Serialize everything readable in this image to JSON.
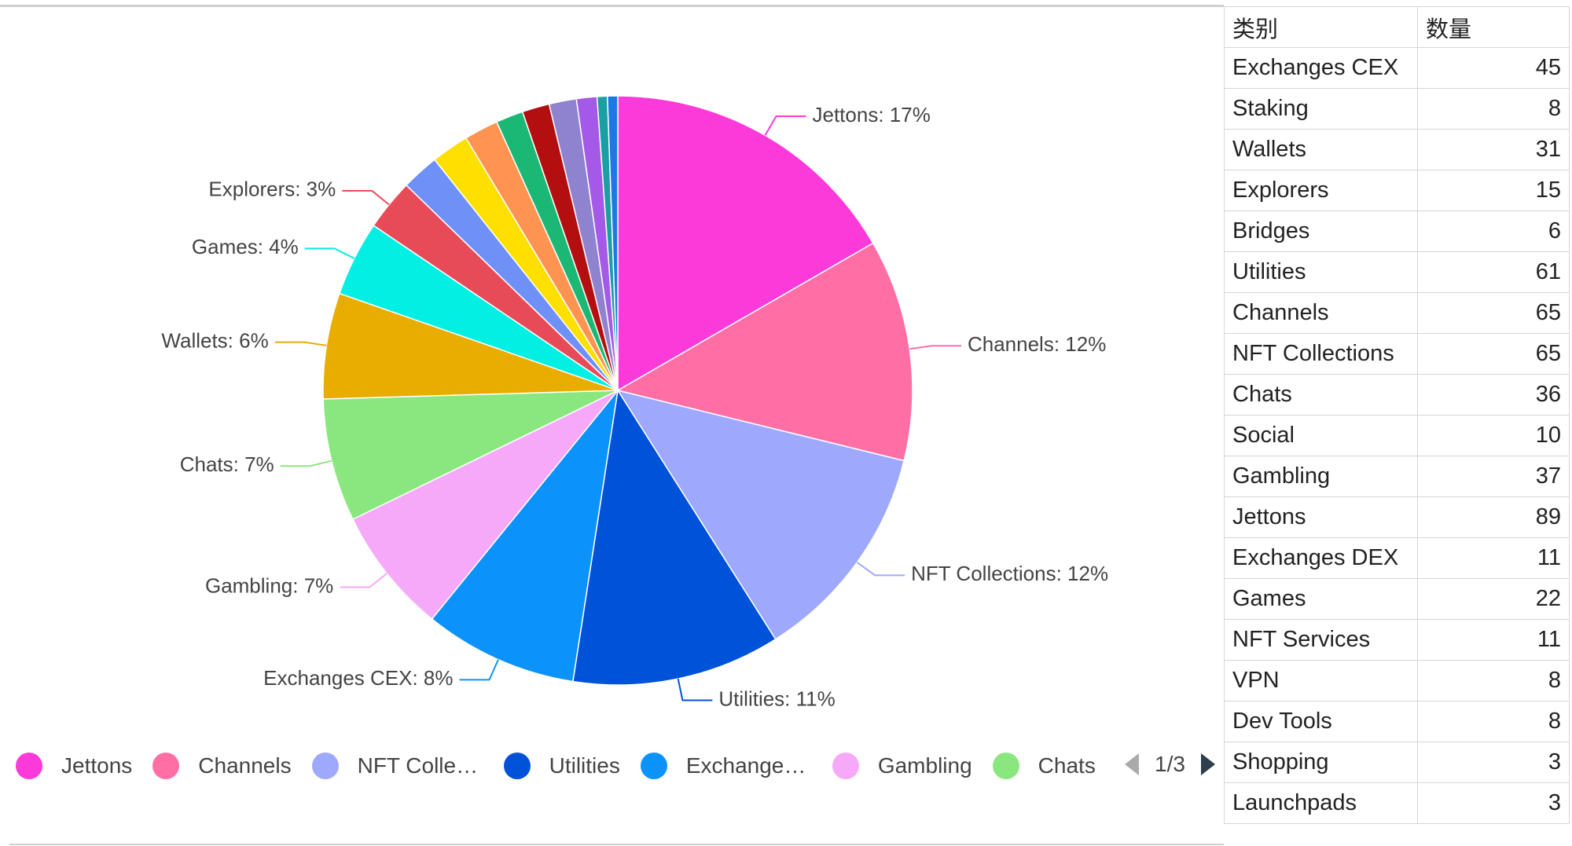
{
  "chart_data": {
    "type": "pie",
    "categories": [
      "Jettons",
      "Channels",
      "NFT Collections",
      "Utilities",
      "Exchanges CEX",
      "Gambling",
      "Chats",
      "Wallets",
      "Games",
      "Explorers",
      "Exchanges DEX",
      "NFT Services",
      "Social",
      "Staking",
      "VPN",
      "Dev Tools",
      "Bridges",
      "Shopping",
      "Launchpads"
    ],
    "values": [
      89,
      65,
      65,
      61,
      45,
      37,
      36,
      31,
      22,
      15,
      11,
      11,
      10,
      8,
      8,
      8,
      6,
      3,
      3
    ],
    "colors": [
      "#fb3ad9",
      "#ff6fa6",
      "#9ea8fd",
      "#0052d9",
      "#0b93fb",
      "#f6a9f8",
      "#8ae77f",
      "#e8ad00",
      "#03efe4",
      "#e84b58",
      "#6e90f7",
      "#ffdf00",
      "#ff9452",
      "#1ab874",
      "#b40f10",
      "#8f82cf",
      "#a45ae6",
      "#1a9fa3",
      "#1d78e6"
    ],
    "data_labels": [
      "Jettons: 17%",
      "Channels: 12%",
      "NFT Collections: 12%",
      "Utilities: 11%",
      "Exchanges CEX: 8%",
      "Gambling: 7%",
      "Chats: 7%",
      "Wallets: 6%",
      "Games: 4%",
      "Explorers: 3%",
      null,
      null,
      null,
      null,
      null,
      null,
      null,
      null,
      null
    ],
    "legend_page": "1/3"
  },
  "table": {
    "header": [
      "类别",
      "数量"
    ],
    "rows": [
      [
        "Exchanges CEX",
        45
      ],
      [
        "Staking",
        8
      ],
      [
        "Wallets",
        31
      ],
      [
        "Explorers",
        15
      ],
      [
        "Bridges",
        6
      ],
      [
        "Utilities",
        61
      ],
      [
        "Channels",
        65
      ],
      [
        "NFT Collections",
        65
      ],
      [
        "Chats",
        36
      ],
      [
        "Social",
        10
      ],
      [
        "Gambling",
        37
      ],
      [
        "Jettons",
        89
      ],
      [
        "Exchanges DEX",
        11
      ],
      [
        "Games",
        22
      ],
      [
        "NFT Services",
        11
      ],
      [
        "VPN",
        8
      ],
      [
        "Dev Tools",
        8
      ],
      [
        "Shopping",
        3
      ],
      [
        "Launchpads",
        3
      ]
    ]
  }
}
